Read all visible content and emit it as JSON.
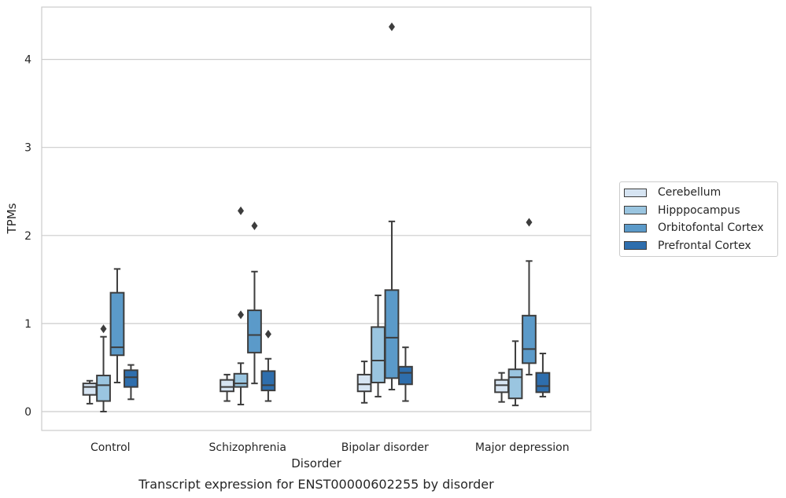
{
  "chart_data": {
    "type": "box",
    "title": "Transcript expression for ENST00000602255 by disorder",
    "xlabel": "Disorder",
    "ylabel": "TPMs",
    "ylim": [
      -0.2,
      4.6
    ],
    "yticks": [
      "0",
      "1",
      "2",
      "3",
      "4"
    ],
    "grid": true,
    "legend_position": "right",
    "categories": [
      "Control",
      "Schizophrenia",
      "Bipolar disorder",
      "Major depression"
    ],
    "series": [
      {
        "name": "Cerebellum",
        "color": "#d6e4f2",
        "boxes": [
          {
            "whislo": 0.09,
            "q1": 0.19,
            "med": 0.28,
            "q3": 0.32,
            "whishi": 0.35,
            "fliers": []
          },
          {
            "whislo": 0.12,
            "q1": 0.23,
            "med": 0.28,
            "q3": 0.36,
            "whishi": 0.42,
            "fliers": []
          },
          {
            "whislo": 0.1,
            "q1": 0.23,
            "med": 0.31,
            "q3": 0.42,
            "whishi": 0.57,
            "fliers": []
          },
          {
            "whislo": 0.11,
            "q1": 0.22,
            "med": 0.3,
            "q3": 0.36,
            "whishi": 0.44,
            "fliers": []
          }
        ]
      },
      {
        "name": "Hipppocampus",
        "color": "#9ac5e0",
        "boxes": [
          {
            "whislo": 0.0,
            "q1": 0.12,
            "med": 0.3,
            "q3": 0.41,
            "whishi": 0.85,
            "fliers": [
              0.94
            ]
          },
          {
            "whislo": 0.08,
            "q1": 0.28,
            "med": 0.32,
            "q3": 0.43,
            "whishi": 0.55,
            "fliers": [
              1.1,
              2.28
            ]
          },
          {
            "whislo": 0.17,
            "q1": 0.33,
            "med": 0.58,
            "q3": 0.96,
            "whishi": 1.32,
            "fliers": []
          },
          {
            "whislo": 0.07,
            "q1": 0.15,
            "med": 0.39,
            "q3": 0.48,
            "whishi": 0.8,
            "fliers": []
          }
        ]
      },
      {
        "name": "Orbitofontal Cortex",
        "color": "#5b9ac9",
        "boxes": [
          {
            "whislo": 0.33,
            "q1": 0.64,
            "med": 0.73,
            "q3": 1.35,
            "whishi": 1.62,
            "fliers": []
          },
          {
            "whislo": 0.32,
            "q1": 0.67,
            "med": 0.87,
            "q3": 1.15,
            "whishi": 1.59,
            "fliers": [
              2.11
            ]
          },
          {
            "whislo": 0.25,
            "q1": 0.38,
            "med": 0.84,
            "q3": 1.38,
            "whishi": 2.16,
            "fliers": [
              4.37
            ]
          },
          {
            "whislo": 0.42,
            "q1": 0.55,
            "med": 0.71,
            "q3": 1.09,
            "whishi": 1.71,
            "fliers": [
              2.15
            ]
          }
        ]
      },
      {
        "name": "Prefrontal Cortex",
        "color": "#2e6ead",
        "boxes": [
          {
            "whislo": 0.14,
            "q1": 0.28,
            "med": 0.39,
            "q3": 0.47,
            "whishi": 0.53,
            "fliers": []
          },
          {
            "whislo": 0.12,
            "q1": 0.24,
            "med": 0.3,
            "q3": 0.46,
            "whishi": 0.6,
            "fliers": [
              0.88
            ]
          },
          {
            "whislo": 0.12,
            "q1": 0.31,
            "med": 0.44,
            "q3": 0.51,
            "whishi": 0.73,
            "fliers": []
          },
          {
            "whislo": 0.17,
            "q1": 0.22,
            "med": 0.29,
            "q3": 0.44,
            "whishi": 0.66,
            "fliers": []
          }
        ]
      }
    ]
  }
}
